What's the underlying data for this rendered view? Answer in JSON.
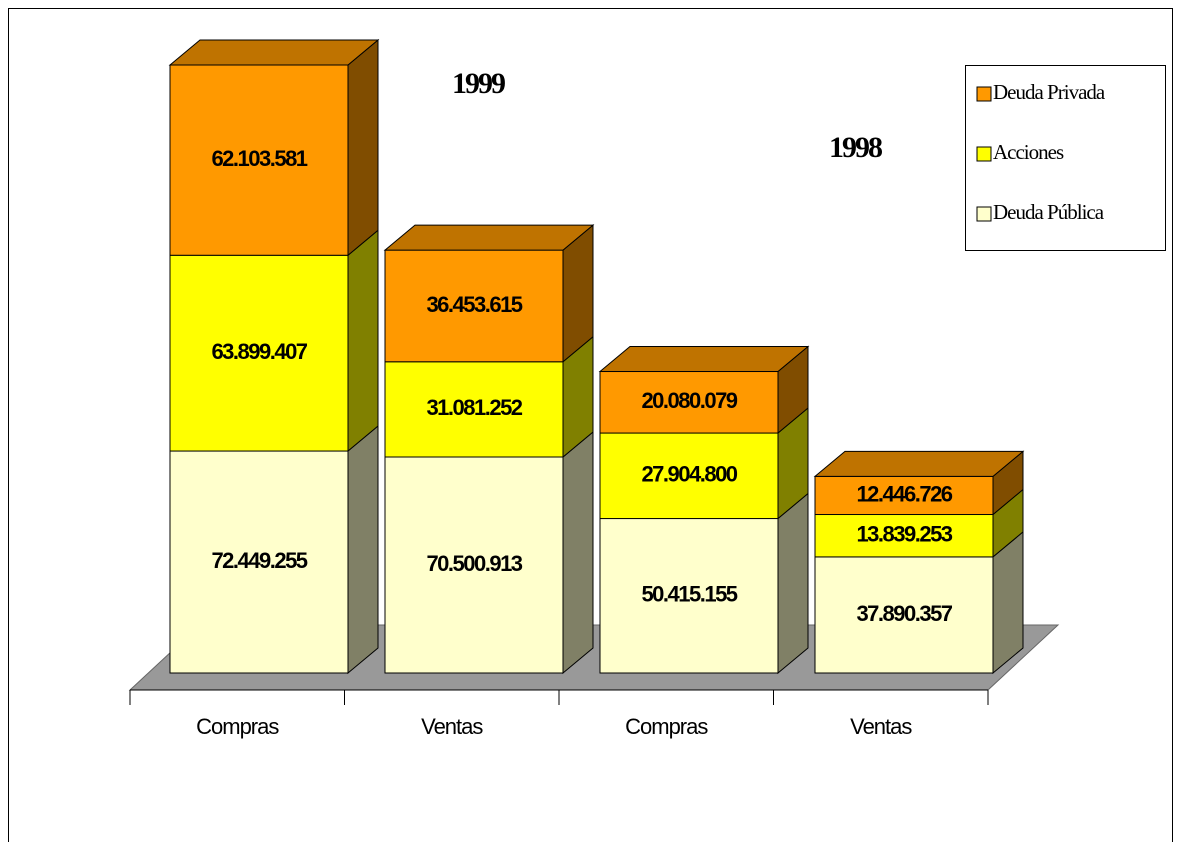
{
  "chart_data": {
    "type": "bar3d-stacked",
    "categories": [
      "Compras",
      "Ventas",
      "Compras",
      "Ventas"
    ],
    "annotations": [
      "1999",
      "1998"
    ],
    "legend": "top-right",
    "series": [
      {
        "name": "Deuda Pública",
        "color": "#ffffcc",
        "values": [
          72449255,
          70500913,
          50415155,
          37890357
        ],
        "value_labels": [
          "72.449.255",
          "70.500.913",
          "50.415.155",
          "37.890.357"
        ]
      },
      {
        "name": "Acciones",
        "color": "#ffff00",
        "values": [
          63899407,
          31081252,
          27904800,
          13839253
        ],
        "value_labels": [
          "63.899.407",
          "31.081.252",
          "27.904.800",
          "13.839.253"
        ]
      },
      {
        "name": "Deuda Privada",
        "color": "#ff9900",
        "values": [
          62103581,
          36453615,
          20080079,
          12446726
        ],
        "value_labels": [
          "62.103.581",
          "36.453.615",
          "20.080.079",
          "12.446.726"
        ]
      }
    ]
  }
}
